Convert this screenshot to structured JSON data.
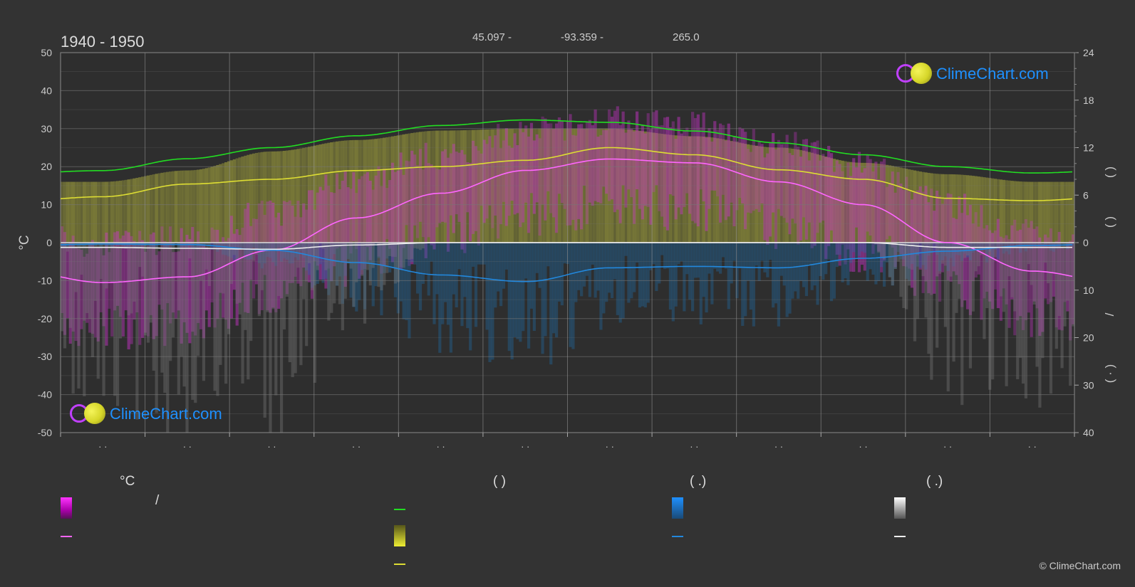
{
  "header": {
    "title": "1940 - 1950",
    "latitude": "45.097 -",
    "longitude": "-93.359 -",
    "elevation": "265.0"
  },
  "logo_text": "ClimeChart.com",
  "copyright": "© ClimeChart.com",
  "legend": {
    "temp_unit_header": "°C",
    "daylight_header": "(          )",
    "rain_header": "(   .)",
    "snow_header": "(   .)",
    "slash": "/"
  },
  "colors": {
    "background": "#333333",
    "daylight": "#22dd22",
    "sunshine": "#dddd33",
    "temp_mean": "#ff66ff",
    "temp_range": "#cc22cc",
    "rain": "#2288dd",
    "snow": "#eeeeee",
    "grid": "#777777"
  },
  "chart_data": {
    "type": "line",
    "months": 12,
    "left_axis": {
      "label": "°C",
      "ylim": [
        -50,
        50
      ],
      "ticks": [
        50,
        40,
        30,
        20,
        10,
        0,
        -10,
        -20,
        -30,
        -40,
        -50
      ]
    },
    "right_axis_upper": {
      "ylim": [
        0,
        24
      ],
      "ticks": [
        24,
        18,
        12,
        6,
        0
      ]
    },
    "right_axis_lower": {
      "ylim": [
        0,
        40
      ],
      "ticks": [
        10,
        20,
        30,
        40
      ]
    },
    "right_axis_labels": [
      "(   )",
      "(   )",
      "/",
      "(  ·  )"
    ],
    "x_tick_labels": [
      "· ·",
      "· ·",
      "· ·",
      "· ·",
      "· ·",
      "· ·",
      "· ·",
      "· ·",
      "· ·",
      "· ·",
      "· ·",
      "· ·"
    ],
    "series": [
      {
        "key": "daylight",
        "unit": "hours",
        "values": [
          9.1,
          10.6,
          12.0,
          13.5,
          14.8,
          15.5,
          15.2,
          14.1,
          12.6,
          11.1,
          9.6,
          8.8
        ]
      },
      {
        "key": "sunshine",
        "unit": "hours",
        "values": [
          5.8,
          7.4,
          8.0,
          9.1,
          9.6,
          10.4,
          12.0,
          11.1,
          9.2,
          8.0,
          5.6,
          5.3
        ]
      },
      {
        "key": "temp_mean",
        "unit": "°C",
        "values": [
          -10.5,
          -9.0,
          -2.0,
          6.5,
          13.0,
          19.0,
          22.0,
          21.0,
          16.0,
          10.0,
          0.0,
          -7.5
        ]
      },
      {
        "key": "temp_max_envelope",
        "unit": "°C",
        "values": [
          16.0,
          19.0,
          24.0,
          27.0,
          29.5,
          30.0,
          30.0,
          28.0,
          25.0,
          21.0,
          18.0,
          16.0
        ]
      },
      {
        "key": "rain",
        "unit": "mm/day",
        "values": [
          0.3,
          0.4,
          1.6,
          4.2,
          6.8,
          8.2,
          5.3,
          5.0,
          5.3,
          3.3,
          1.8,
          0.6
        ]
      },
      {
        "key": "snow",
        "unit": "mm/day",
        "values": [
          1.0,
          1.2,
          1.4,
          0.5,
          0.0,
          0.0,
          0.0,
          0.0,
          0.0,
          0.0,
          1.0,
          1.0
        ]
      }
    ]
  }
}
